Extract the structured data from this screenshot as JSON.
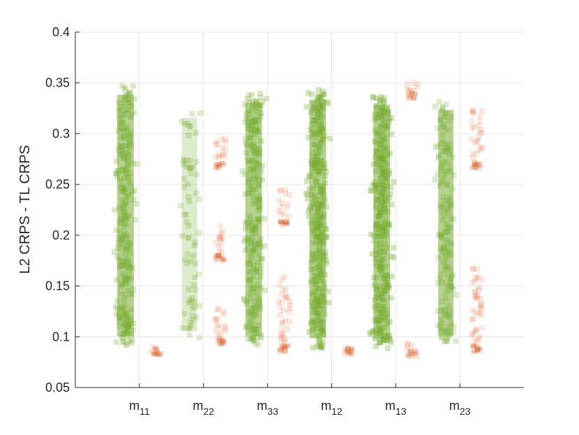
{
  "chart_data": {
    "type": "scatter",
    "title": "",
    "xlabel": "",
    "ylabel": "L2 CRPS - TL CRPS",
    "ylim": [
      0.05,
      0.4
    ],
    "yticks": [
      "0.05",
      "0.1",
      "0.15",
      "0.2",
      "0.25",
      "0.3",
      "0.35",
      "0.4"
    ],
    "grid": true,
    "categories": [
      {
        "base": "m",
        "sub": "11"
      },
      {
        "base": "m",
        "sub": "22"
      },
      {
        "base": "m",
        "sub": "33"
      },
      {
        "base": "m",
        "sub": "12"
      },
      {
        "base": "m",
        "sub": "13"
      },
      {
        "base": "m",
        "sub": "23"
      }
    ],
    "colors": {
      "positive": "#77ac30",
      "negative": "#d95319"
    },
    "series": [
      {
        "color": "#77ac30",
        "groups": [
          {
            "category": "m11",
            "min": 0.091,
            "max": 0.348,
            "density": "dense"
          },
          {
            "category": "m22",
            "min": 0.096,
            "max": 0.325,
            "density": "sparse"
          },
          {
            "category": "m33",
            "min": 0.091,
            "max": 0.34,
            "density": "dense"
          },
          {
            "category": "m12",
            "min": 0.089,
            "max": 0.343,
            "density": "very dense"
          },
          {
            "category": "m13",
            "min": 0.088,
            "max": 0.338,
            "density": "very dense"
          },
          {
            "category": "m23",
            "min": 0.091,
            "max": 0.333,
            "density": "medium"
          }
        ]
      },
      {
        "color": "#d95319",
        "groups": [
          {
            "category": "m11",
            "ranges": [
              [
                0.082,
                0.094
              ]
            ]
          },
          {
            "category": "m22",
            "ranges": [
              [
                0.092,
                0.13
              ],
              [
                0.175,
                0.21
              ],
              [
                0.265,
                0.295
              ]
            ]
          },
          {
            "category": "m33",
            "ranges": [
              [
                0.085,
                0.16
              ],
              [
                0.21,
                0.245
              ]
            ]
          },
          {
            "category": "m12",
            "ranges": [
              [
                0.082,
                0.09
              ]
            ]
          },
          {
            "category": "m13",
            "ranges": [
              [
                0.08,
                0.095
              ],
              [
                0.334,
                0.352
              ]
            ]
          },
          {
            "category": "m23",
            "ranges": [
              [
                0.085,
                0.175
              ],
              [
                0.265,
                0.325
              ]
            ]
          }
        ]
      }
    ]
  }
}
